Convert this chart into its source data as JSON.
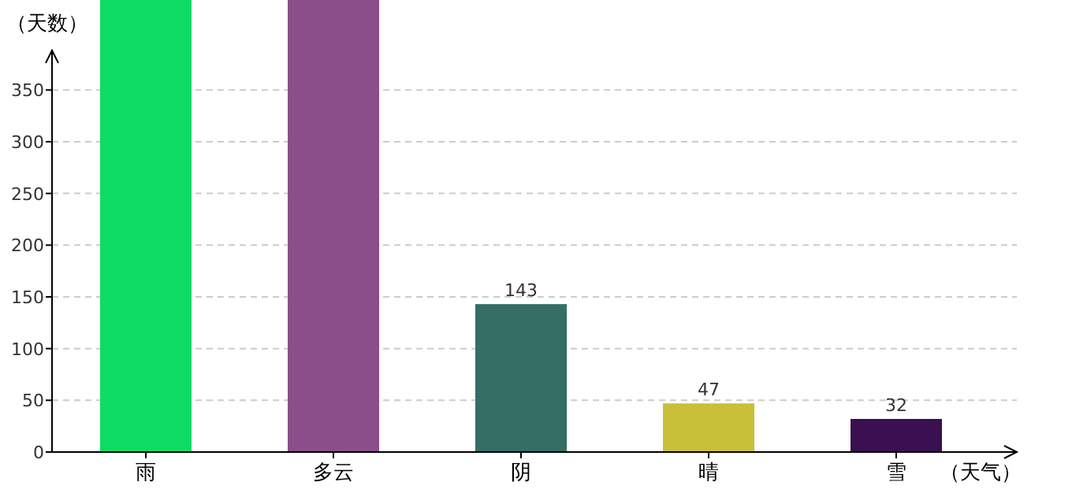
{
  "chart_data": {
    "type": "bar",
    "xlabel": "（天气）",
    "ylabel": "（天数）",
    "categories": [
      "雨",
      "多云",
      "阴",
      "晴",
      "雪"
    ],
    "values": [
      437,
      437,
      143,
      47,
      32
    ],
    "colors": [
      "#0edc64",
      "#8a4f88",
      "#346e64",
      "#c8c038",
      "#3a1050"
    ],
    "value_labels": [
      null,
      null,
      "143",
      "47",
      "32"
    ],
    "ylim": [
      0,
      437
    ],
    "yticks": [
      0,
      50,
      100,
      150,
      200,
      250,
      300,
      350
    ],
    "grid": "y"
  }
}
